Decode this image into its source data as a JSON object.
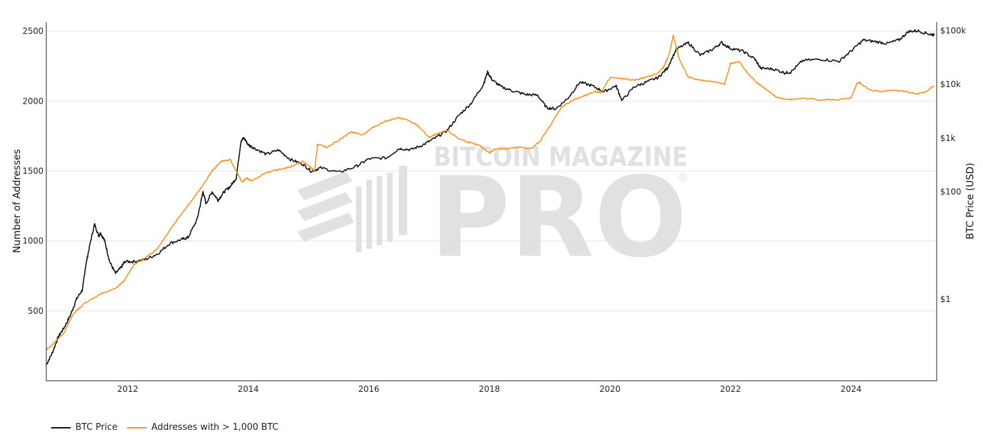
{
  "chart_data": {
    "type": "line",
    "title": "",
    "watermark": {
      "top": "BITCOIN MAGAZINE",
      "main": "PRO",
      "mark": "®"
    },
    "x_range": [
      2010.65,
      2025.42
    ],
    "x_ticks": [
      2012,
      2014,
      2016,
      2018,
      2020,
      2022,
      2024
    ],
    "y_left": {
      "label": "Number of Addresses",
      "range": [
        0,
        2565
      ],
      "ticks": [
        500,
        1000,
        1500,
        2000,
        2500
      ]
    },
    "y_right": {
      "label": "BTC Price (USD)",
      "scale": "log",
      "range": [
        0.03,
        145000
      ],
      "ticks": [
        1,
        100,
        1000,
        10000,
        100000
      ],
      "tick_labels": [
        "$1",
        "$100",
        "$1k",
        "$10k",
        "$100k"
      ]
    },
    "series": [
      {
        "name": "BTC Price",
        "axis": "right",
        "color": "#111111",
        "x": [
          2010.65,
          2010.75,
          2010.85,
          2010.95,
          2011.05,
          2011.15,
          2011.25,
          2011.3,
          2011.37,
          2011.45,
          2011.52,
          2011.55,
          2011.62,
          2011.7,
          2011.8,
          2011.9,
          2011.95,
          2012.1,
          2012.3,
          2012.5,
          2012.7,
          2012.9,
          2013.0,
          2013.15,
          2013.25,
          2013.3,
          2013.4,
          2013.5,
          2013.6,
          2013.7,
          2013.8,
          2013.88,
          2013.93,
          2014.0,
          2014.1,
          2014.3,
          2014.5,
          2014.7,
          2014.9,
          2015.05,
          2015.2,
          2015.5,
          2015.8,
          2016.0,
          2016.3,
          2016.5,
          2016.7,
          2016.9,
          2017.1,
          2017.3,
          2017.5,
          2017.7,
          2017.9,
          2017.97,
          2018.05,
          2018.2,
          2018.4,
          2018.6,
          2018.8,
          2018.95,
          2019.1,
          2019.3,
          2019.5,
          2019.7,
          2019.9,
          2020.1,
          2020.2,
          2020.4,
          2020.6,
          2020.8,
          2020.95,
          2021.1,
          2021.3,
          2021.5,
          2021.7,
          2021.85,
          2022.0,
          2022.2,
          2022.4,
          2022.5,
          2022.7,
          2022.9,
          2023.0,
          2023.2,
          2023.5,
          2023.8,
          2024.0,
          2024.2,
          2024.4,
          2024.6,
          2024.8,
          2024.95,
          2025.1,
          2025.3,
          2025.38
        ],
        "values": [
          0.06,
          0.1,
          0.2,
          0.3,
          0.5,
          1.0,
          1.5,
          4,
          10,
          25,
          15,
          17,
          12,
          5,
          3,
          4,
          5,
          5,
          5.5,
          7,
          11,
          13,
          14,
          30,
          100,
          60,
          100,
          70,
          100,
          125,
          180,
          900,
          1000,
          750,
          650,
          500,
          600,
          400,
          330,
          240,
          280,
          230,
          300,
          410,
          430,
          640,
          610,
          750,
          1000,
          1400,
          2700,
          4500,
          10000,
          17000,
          12000,
          9000,
          7500,
          6500,
          6300,
          3700,
          3500,
          5500,
          11000,
          9500,
          7300,
          9500,
          5000,
          9000,
          11000,
          13500,
          20000,
          45000,
          60000,
          35000,
          45000,
          60000,
          47000,
          42000,
          30000,
          20000,
          19500,
          16500,
          17000,
          28000,
          29500,
          27000,
          42000,
          67000,
          63000,
          58000,
          68000,
          97000,
          100000,
          87000,
          84000
        ]
      },
      {
        "name": "Addresses with > 1,000 BTC",
        "axis": "left",
        "color": "#f7931a",
        "x": [
          2010.65,
          2010.8,
          2010.95,
          2011.1,
          2011.3,
          2011.55,
          2011.8,
          2011.95,
          2012.1,
          2012.3,
          2012.5,
          2012.7,
          2012.9,
          2013.1,
          2013.25,
          2013.4,
          2013.55,
          2013.7,
          2013.9,
          2013.97,
          2014.05,
          2014.3,
          2014.5,
          2014.7,
          2014.9,
          2015.0,
          2015.1,
          2015.15,
          2015.3,
          2015.5,
          2015.7,
          2015.9,
          2016.1,
          2016.3,
          2016.5,
          2016.6,
          2016.8,
          2017.0,
          2017.1,
          2017.3,
          2017.5,
          2017.7,
          2017.85,
          2018.0,
          2018.1,
          2018.3,
          2018.5,
          2018.7,
          2018.85,
          2019.0,
          2019.2,
          2019.4,
          2019.6,
          2019.75,
          2019.85,
          2020.0,
          2020.2,
          2020.4,
          2020.6,
          2020.8,
          2020.9,
          2020.98,
          2021.05,
          2021.15,
          2021.3,
          2021.5,
          2021.7,
          2021.9,
          2022.0,
          2022.15,
          2022.3,
          2022.45,
          2022.6,
          2022.75,
          2022.95,
          2023.2,
          2023.5,
          2023.8,
          2024.0,
          2024.1,
          2024.15,
          2024.3,
          2024.5,
          2024.7,
          2024.9,
          2025.1,
          2025.25,
          2025.38
        ],
        "values": [
          220,
          280,
          350,
          480,
          560,
          620,
          660,
          720,
          830,
          880,
          950,
          1080,
          1200,
          1310,
          1400,
          1500,
          1570,
          1580,
          1420,
          1450,
          1430,
          1490,
          1510,
          1530,
          1570,
          1540,
          1500,
          1690,
          1670,
          1720,
          1780,
          1760,
          1820,
          1860,
          1880,
          1870,
          1830,
          1740,
          1760,
          1790,
          1730,
          1700,
          1680,
          1630,
          1660,
          1660,
          1670,
          1660,
          1720,
          1820,
          1960,
          2010,
          2040,
          2070,
          2060,
          2170,
          2160,
          2150,
          2170,
          2200,
          2250,
          2330,
          2470,
          2300,
          2170,
          2150,
          2140,
          2120,
          2270,
          2280,
          2190,
          2130,
          2080,
          2030,
          2010,
          2020,
          2010,
          2010,
          2020,
          2130,
          2130,
          2080,
          2070,
          2080,
          2070,
          2050,
          2070,
          2110
        ]
      }
    ],
    "legend_position": "bottom-left"
  }
}
